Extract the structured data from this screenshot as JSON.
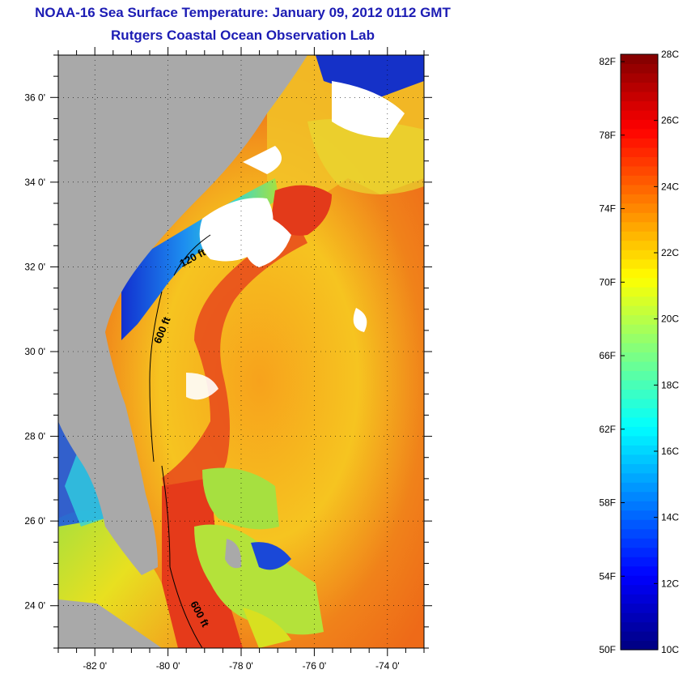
{
  "header": {
    "title": "NOAA-16 Sea Surface Temperature:  January 09, 2012 0112 GMT",
    "subtitle": "Rutgers Coastal Ocean Observation Lab"
  },
  "map": {
    "lon_range": [
      -83,
      -73
    ],
    "lat_range": [
      23,
      37
    ],
    "lat_ticks": [
      {
        "value": 24,
        "label": "24 0'"
      },
      {
        "value": 26,
        "label": "26 0'"
      },
      {
        "value": 28,
        "label": "28 0'"
      },
      {
        "value": 30,
        "label": "30 0'"
      },
      {
        "value": 32,
        "label": "32 0'"
      },
      {
        "value": 34,
        "label": "34 0'"
      },
      {
        "value": 36,
        "label": "36 0'"
      }
    ],
    "lon_ticks": [
      {
        "value": -82,
        "label": "-82 0'"
      },
      {
        "value": -80,
        "label": "-80 0'"
      },
      {
        "value": -78,
        "label": "-78 0'"
      },
      {
        "value": -76,
        "label": "-76 0'"
      },
      {
        "value": -74,
        "label": "-74 0'"
      }
    ],
    "contour_labels": [
      "120 ft",
      "600 ft",
      "600 ft"
    ],
    "colors": {
      "land": "#a9a9a9",
      "cloud": "#ffffff",
      "gulf_stream": "#e8331a",
      "shelf_cold": "#1a3fd6",
      "open_ocean": "#f59a1e"
    }
  },
  "colorbar": {
    "fahrenheit_labels": [
      "82F",
      "78F",
      "74F",
      "70F",
      "66F",
      "62F",
      "58F",
      "54F",
      "50F"
    ],
    "celsius_labels": [
      "28C",
      "26C",
      "24C",
      "22C",
      "20C",
      "18C",
      "16C",
      "14C",
      "12C",
      "10C"
    ],
    "range_c": [
      10,
      28
    ],
    "colormap": "jet"
  }
}
